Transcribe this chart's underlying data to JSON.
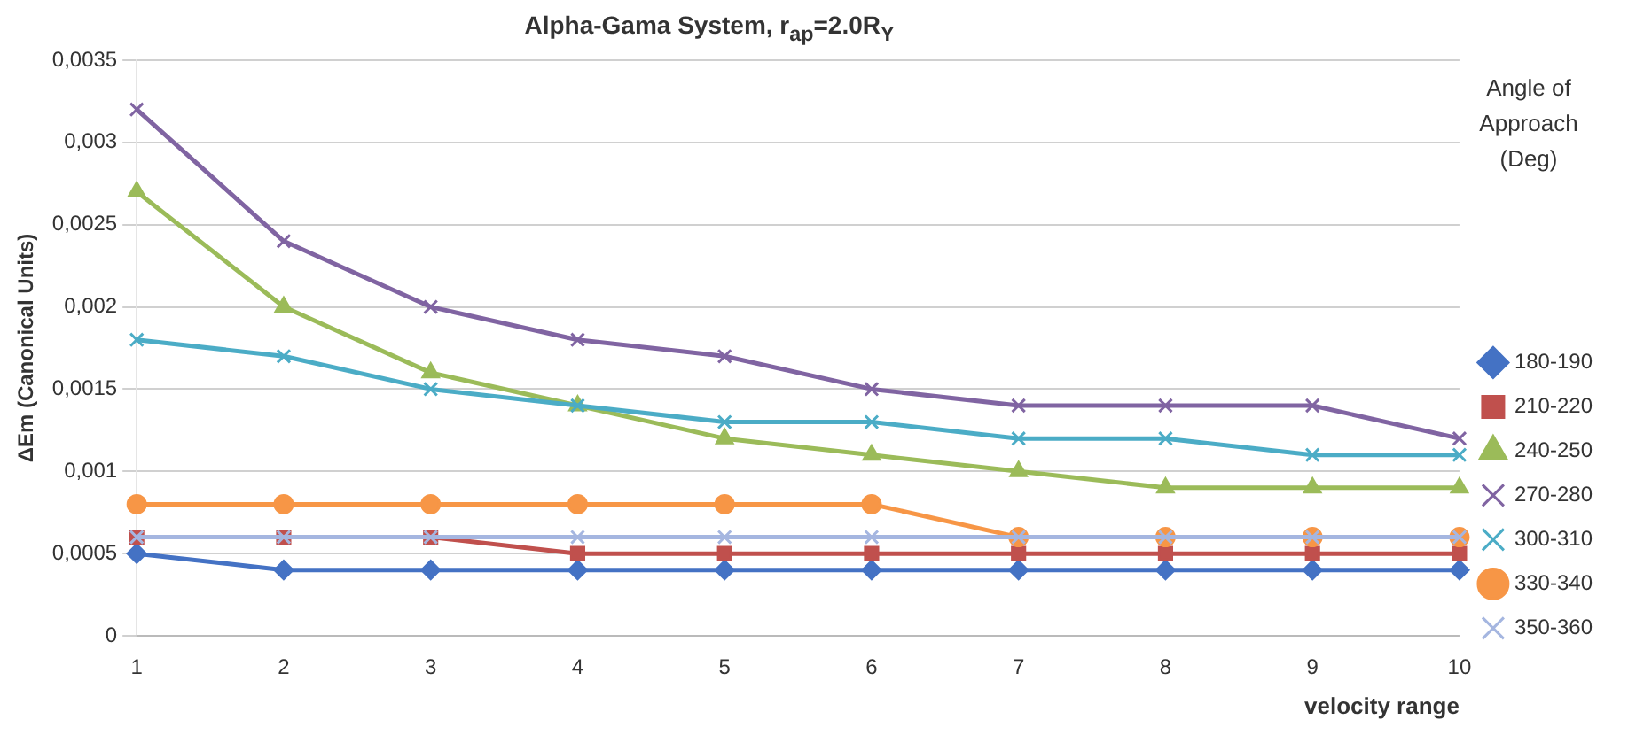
{
  "chart_data": {
    "type": "line",
    "title": "Alpha-Gama System, r$_{ap}$=2.0R$_{Y}$",
    "xlabel": "velocity range",
    "ylabel": "ΔEm (Canonical Units)",
    "legend_title": "Angle of Approach (Deg)",
    "categories": [
      "1",
      "2",
      "3",
      "4",
      "5",
      "6",
      "7",
      "8",
      "9",
      "10"
    ],
    "ylim": [
      0,
      0.0035
    ],
    "yticks": [
      {
        "value": 0,
        "label": "0"
      },
      {
        "value": 0.0005,
        "label": "0,0005"
      },
      {
        "value": 0.001,
        "label": "0,001"
      },
      {
        "value": 0.0015,
        "label": "0,0015"
      },
      {
        "value": 0.002,
        "label": "0,002"
      },
      {
        "value": 0.0025,
        "label": "0,0025"
      },
      {
        "value": 0.003,
        "label": "0,003"
      },
      {
        "value": 0.0035,
        "label": "0,0035"
      }
    ],
    "grid": "y",
    "legend": "right",
    "series": [
      {
        "name": "180-190",
        "color": "#4472c4",
        "marker": "diamond",
        "values": [
          0.0005,
          0.0004,
          0.0004,
          0.0004,
          0.0004,
          0.0004,
          0.0004,
          0.0004,
          0.0004,
          0.0004
        ]
      },
      {
        "name": "210-220",
        "color": "#c0504d",
        "marker": "square",
        "values": [
          0.0006,
          0.0006,
          0.0006,
          0.0005,
          0.0005,
          0.0005,
          0.0005,
          0.0005,
          0.0005,
          0.0005
        ]
      },
      {
        "name": "240-250",
        "color": "#9bbb59",
        "marker": "triangle",
        "values": [
          0.0027,
          0.002,
          0.0016,
          0.0014,
          0.0012,
          0.0011,
          0.001,
          0.0009,
          0.0009,
          0.0009
        ]
      },
      {
        "name": "270-280",
        "color": "#8064a2",
        "marker": "cross",
        "values": [
          0.0032,
          0.0024,
          0.002,
          0.0018,
          0.0017,
          0.0015,
          0.0014,
          0.0014,
          0.0014,
          0.0012
        ]
      },
      {
        "name": "300-310",
        "color": "#4bacc6",
        "marker": "cross",
        "values": [
          0.0018,
          0.0017,
          0.0015,
          0.0014,
          0.0013,
          0.0013,
          0.0012,
          0.0012,
          0.0011,
          0.0011
        ]
      },
      {
        "name": "330-340",
        "color": "#f79646",
        "marker": "circle",
        "values": [
          0.0008,
          0.0008,
          0.0008,
          0.0008,
          0.0008,
          0.0008,
          0.0006,
          0.0006,
          0.0006,
          0.0006
        ]
      },
      {
        "name": "350-360",
        "color": "#a5b6e0",
        "marker": "cross",
        "values": [
          0.0006,
          0.0006,
          0.0006,
          0.0006,
          0.0006,
          0.0006,
          0.0006,
          0.0006,
          0.0006,
          0.0006
        ]
      }
    ]
  }
}
